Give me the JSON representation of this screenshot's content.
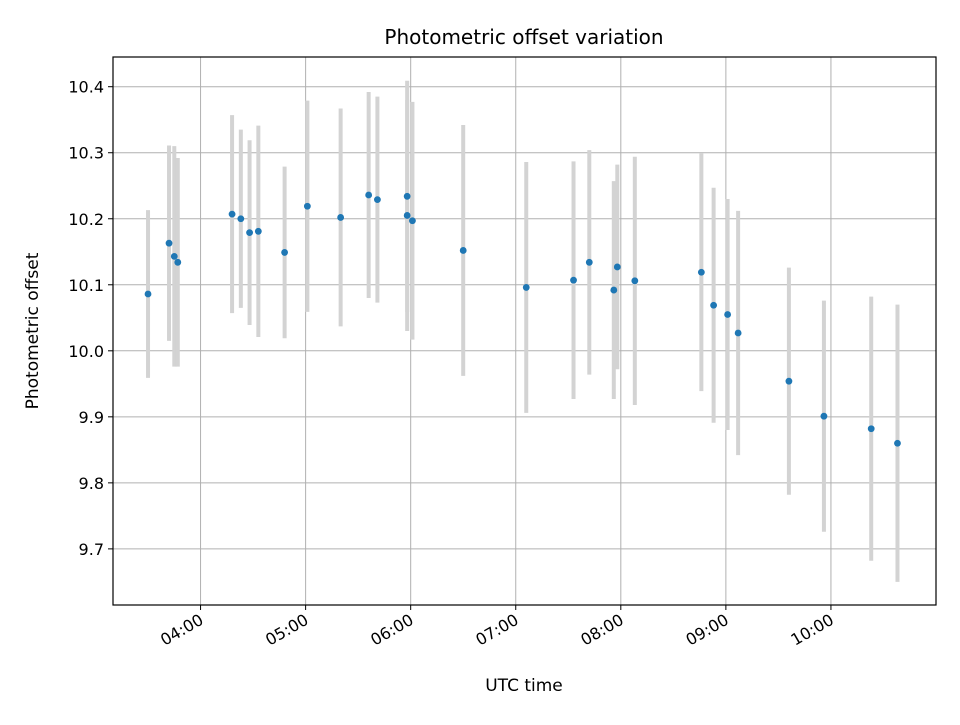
{
  "chart_data": {
    "type": "scatter",
    "title": "Photometric offset variation",
    "xlabel": "UTC time",
    "ylabel": "Photometric offset",
    "x_axis": {
      "kind": "time",
      "range": [
        "03:10",
        "11:00"
      ],
      "ticks": [
        {
          "value": "04:00",
          "label": "04:00"
        },
        {
          "value": "05:00",
          "label": "05:00"
        },
        {
          "value": "06:00",
          "label": "06:00"
        },
        {
          "value": "07:00",
          "label": "07:00"
        },
        {
          "value": "08:00",
          "label": "08:00"
        },
        {
          "value": "09:00",
          "label": "09:00"
        },
        {
          "value": "10:00",
          "label": "10:00"
        }
      ]
    },
    "y_axis": {
      "range": [
        9.615,
        10.445
      ],
      "ticks": [
        {
          "value": 9.7,
          "label": "9.7"
        },
        {
          "value": 9.8,
          "label": "9.8"
        },
        {
          "value": 9.9,
          "label": "9.9"
        },
        {
          "value": 10.0,
          "label": "10.0"
        },
        {
          "value": 10.1,
          "label": "10.1"
        },
        {
          "value": 10.2,
          "label": "10.2"
        },
        {
          "value": 10.3,
          "label": "10.3"
        },
        {
          "value": 10.4,
          "label": "10.4"
        }
      ]
    },
    "grid": true,
    "colors": {
      "point": "#1f77b4",
      "errorbar": "#d3d3d3",
      "grid": "#b0b0b0"
    },
    "points": [
      {
        "x": "03:30",
        "y": 10.086,
        "err": 0.127
      },
      {
        "x": "03:42",
        "y": 10.163,
        "err": 0.148
      },
      {
        "x": "03:45",
        "y": 10.143,
        "err": 0.167
      },
      {
        "x": "03:47",
        "y": 10.134,
        "err": 0.158
      },
      {
        "x": "04:18",
        "y": 10.207,
        "err": 0.15
      },
      {
        "x": "04:23",
        "y": 10.2,
        "err": 0.135
      },
      {
        "x": "04:28",
        "y": 10.179,
        "err": 0.14
      },
      {
        "x": "04:33",
        "y": 10.181,
        "err": 0.16
      },
      {
        "x": "04:48",
        "y": 10.149,
        "err": 0.13
      },
      {
        "x": "05:01",
        "y": 10.219,
        "err": 0.16
      },
      {
        "x": "05:20",
        "y": 10.202,
        "err": 0.165
      },
      {
        "x": "05:36",
        "y": 10.236,
        "err": 0.156
      },
      {
        "x": "05:41",
        "y": 10.229,
        "err": 0.156
      },
      {
        "x": "05:58",
        "y": 10.234,
        "err": 0.175
      },
      {
        "x": "05:58",
        "y": 10.205,
        "err": 0.175
      },
      {
        "x": "06:01",
        "y": 10.197,
        "err": 0.18
      },
      {
        "x": "06:30",
        "y": 10.152,
        "err": 0.19
      },
      {
        "x": "07:06",
        "y": 10.096,
        "err": 0.19
      },
      {
        "x": "07:33",
        "y": 10.107,
        "err": 0.18
      },
      {
        "x": "07:42",
        "y": 10.134,
        "err": 0.17
      },
      {
        "x": "07:56",
        "y": 10.092,
        "err": 0.165
      },
      {
        "x": "07:58",
        "y": 10.127,
        "err": 0.155
      },
      {
        "x": "08:08",
        "y": 10.106,
        "err": 0.188
      },
      {
        "x": "08:46",
        "y": 10.119,
        "err": 0.18
      },
      {
        "x": "08:53",
        "y": 10.069,
        "err": 0.178
      },
      {
        "x": "09:01",
        "y": 10.055,
        "err": 0.175
      },
      {
        "x": "09:07",
        "y": 10.027,
        "err": 0.185
      },
      {
        "x": "09:36",
        "y": 9.954,
        "err": 0.172
      },
      {
        "x": "09:56",
        "y": 9.901,
        "err": 0.175
      },
      {
        "x": "10:23",
        "y": 9.882,
        "err": 0.2
      },
      {
        "x": "10:38",
        "y": 9.86,
        "err": 0.21
      }
    ]
  }
}
